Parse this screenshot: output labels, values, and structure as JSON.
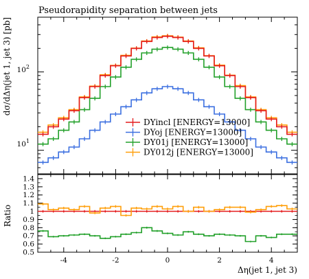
{
  "chart_data": [
    {
      "type": "line",
      "title": "Pseudorapidity separation between jets",
      "xlabel": "Δη(jet 1, jet 3)",
      "ylabel": "dσ/dΔη(jet 1, jet 3) [pb]",
      "yscale": "log",
      "xlim": [
        -5,
        5
      ],
      "ylim": [
        5,
        500
      ],
      "y_tick_labels": [
        "10^1",
        "10^2"
      ],
      "legend": "center-right",
      "x": [
        -4.8,
        -4.4,
        -4.0,
        -3.6,
        -3.2,
        -2.8,
        -2.4,
        -2.0,
        -1.6,
        -1.2,
        -0.8,
        -0.4,
        0.0,
        0.4,
        0.8,
        1.2,
        1.6,
        2.0,
        2.4,
        2.8,
        3.2,
        3.6,
        4.0,
        4.4,
        4.8
      ],
      "series": [
        {
          "name": "DYincl [ENERGY=13000]",
          "color": "#e41a1c",
          "values": [
            16,
            20,
            25,
            32,
            47,
            65,
            90,
            120,
            160,
            200,
            245,
            275,
            285,
            275,
            245,
            200,
            160,
            120,
            90,
            65,
            47,
            32,
            25,
            20,
            16
          ]
        },
        {
          "name": "DYoj [ENERGY=13000]",
          "color": "#3b6fe0",
          "values": [
            7,
            8,
            9.5,
            11,
            14,
            18,
            23,
            29,
            36,
            44,
            54,
            61,
            65,
            61,
            54,
            44,
            36,
            29,
            23,
            18,
            14,
            11,
            9.5,
            8,
            7
          ]
        },
        {
          "name": "DY01j [ENERGY=13000]",
          "color": "#22a02a",
          "values": [
            12,
            14,
            18,
            23,
            33,
            46,
            65,
            86,
            115,
            145,
            175,
            195,
            205,
            195,
            175,
            145,
            115,
            86,
            65,
            46,
            33,
            23,
            18,
            14,
            12
          ]
        },
        {
          "name": "DY012j [ENERGY=13000]",
          "color": "#ff9f0a",
          "values": [
            17,
            21,
            26,
            33,
            48,
            66,
            92,
            121,
            163,
            201,
            248,
            280,
            290,
            278,
            248,
            203,
            161,
            122,
            91,
            67,
            48,
            33,
            26,
            21,
            17
          ]
        }
      ]
    },
    {
      "type": "line",
      "xlabel": "Δη(jet 1, jet 3)",
      "ylabel": "Ratio",
      "xlim": [
        -5,
        5
      ],
      "ylim": [
        0.5,
        1.45
      ],
      "y_tick_labels": [
        "0.5",
        "0.6",
        "0.7",
        "0.8",
        "0.9",
        "1",
        "1.1",
        "1.2",
        "1.3",
        "1.4"
      ],
      "x_tick_labels": [
        "-4",
        "-2",
        "0",
        "2",
        "4"
      ],
      "x": [
        -4.8,
        -4.4,
        -4.0,
        -3.6,
        -3.2,
        -2.8,
        -2.4,
        -2.0,
        -1.6,
        -1.2,
        -0.8,
        -0.4,
        0.0,
        0.4,
        0.8,
        1.2,
        1.6,
        2.0,
        2.4,
        2.8,
        3.2,
        3.6,
        4.0,
        4.4,
        4.8
      ],
      "series": [
        {
          "name": "DYincl [ENERGY=13000]",
          "color": "#e41a1c",
          "values": [
            1.0,
            1.0,
            1.0,
            1.0,
            1.0,
            1.0,
            1.0,
            1.0,
            1.0,
            1.0,
            1.0,
            1.0,
            1.0,
            1.0,
            1.0,
            1.0,
            1.0,
            1.0,
            1.0,
            1.0,
            1.0,
            1.0,
            1.0,
            1.0,
            1.0
          ]
        },
        {
          "name": "DY01j [ENERGY=13000]",
          "color": "#22a02a",
          "values": [
            0.76,
            0.69,
            0.7,
            0.71,
            0.72,
            0.7,
            0.67,
            0.69,
            0.72,
            0.74,
            0.8,
            0.76,
            0.73,
            0.71,
            0.75,
            0.72,
            0.7,
            0.72,
            0.71,
            0.7,
            0.63,
            0.7,
            0.68,
            0.72,
            0.72
          ]
        },
        {
          "name": "DY012j [ENERGY=13000]",
          "color": "#ff9f0a",
          "values": [
            1.09,
            1.02,
            1.04,
            1.02,
            1.06,
            0.98,
            1.04,
            1.06,
            0.95,
            1.04,
            1.03,
            1.06,
            1.03,
            1.06,
            1.0,
            1.05,
            1.0,
            1.02,
            1.05,
            1.05,
            0.99,
            1.02,
            1.06,
            1.07,
            1.03
          ]
        }
      ]
    }
  ]
}
